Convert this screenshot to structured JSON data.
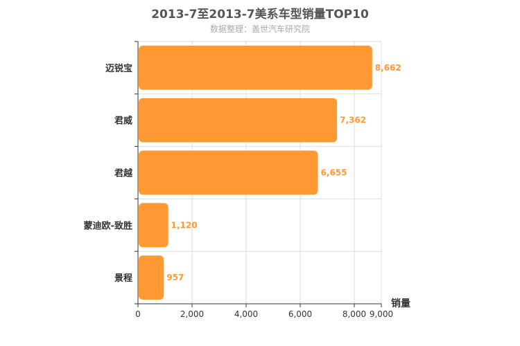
{
  "chart_data": {
    "type": "bar",
    "orientation": "horizontal",
    "title": "2013-7至2013-7美系车型销量TOP10",
    "subtitle": "数据整理：盖世汽车研究院",
    "categories": [
      "迈锐宝",
      "君威",
      "君越",
      "蒙迪欧-致胜",
      "景程"
    ],
    "values": [
      8662,
      7362,
      6655,
      1120,
      957
    ],
    "value_labels": [
      "8,662",
      "7,362",
      "6,655",
      "1,120",
      "957"
    ],
    "xlabel": "销量",
    "xlim": [
      0,
      9000
    ],
    "x_ticks": [
      0,
      2000,
      4000,
      6000,
      8000,
      9000
    ],
    "x_tick_labels": [
      "0",
      "2,000",
      "4,000",
      "6,000",
      "8,000",
      "9,000"
    ],
    "grid": true,
    "bar_color": "#ff9933"
  }
}
